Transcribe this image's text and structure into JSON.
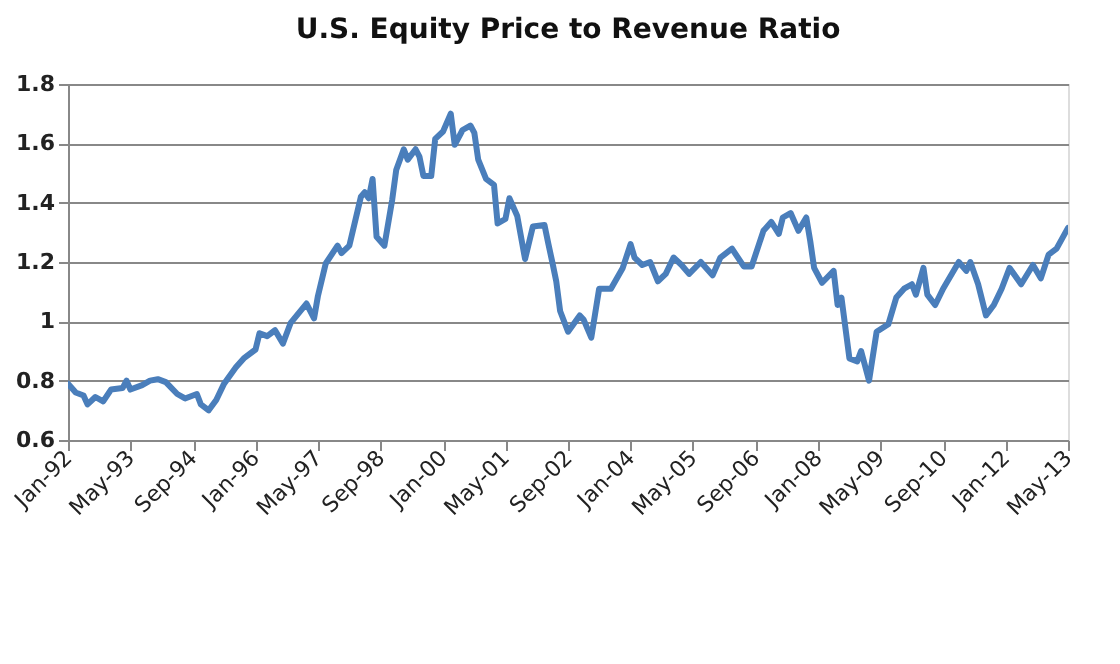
{
  "chart_data": {
    "type": "line",
    "title": "U.S. Equity Price to Revenue Ratio",
    "x": [
      "1992-01",
      "1992-03",
      "1992-05",
      "1992-06",
      "1992-08",
      "1992-10",
      "1992-12",
      "1993-03",
      "1993-04",
      "1993-05",
      "1993-08",
      "1993-10",
      "1993-12",
      "1994-02",
      "1994-05",
      "1994-07",
      "1994-10",
      "1994-11",
      "1995-01",
      "1995-03",
      "1995-05",
      "1995-08",
      "1995-10",
      "1996-01",
      "1996-02",
      "1996-04",
      "1996-06",
      "1996-08",
      "1996-10",
      "1997-02",
      "1997-04",
      "1997-05",
      "1997-07",
      "1997-10",
      "1997-11",
      "1998-01",
      "1998-04",
      "1998-05",
      "1998-06",
      "1998-07",
      "1998-08",
      "1998-10",
      "1998-12",
      "1999-01",
      "1999-03",
      "1999-04",
      "1999-06",
      "1999-07",
      "1999-08",
      "1999-10",
      "1999-11",
      "2000-01",
      "2000-03",
      "2000-04",
      "2000-06",
      "2000-08",
      "2000-09",
      "2000-10",
      "2000-12",
      "2001-02",
      "2001-03",
      "2001-05",
      "2001-06",
      "2001-08",
      "2001-10",
      "2001-12",
      "2002-03",
      "2002-04",
      "2002-05",
      "2002-06",
      "2002-07",
      "2002-09",
      "2002-12",
      "2003-01",
      "2003-03",
      "2003-05",
      "2003-08",
      "2003-11",
      "2004-01",
      "2004-02",
      "2004-04",
      "2004-06",
      "2004-08",
      "2004-10",
      "2004-12",
      "2005-02",
      "2005-04",
      "2005-07",
      "2005-10",
      "2005-12",
      "2006-03",
      "2006-06",
      "2006-08",
      "2006-11",
      "2007-01",
      "2007-03",
      "2007-04",
      "2007-06",
      "2007-08",
      "2007-10",
      "2007-11",
      "2007-12",
      "2008-02",
      "2008-05",
      "2008-06",
      "2008-07",
      "2008-09",
      "2008-11",
      "2008-12",
      "2009-02",
      "2009-04",
      "2009-07",
      "2009-09",
      "2009-11",
      "2010-01",
      "2010-02",
      "2010-04",
      "2010-05",
      "2010-07",
      "2010-09",
      "2011-01",
      "2011-03",
      "2011-04",
      "2011-06",
      "2011-08",
      "2011-10",
      "2011-12",
      "2012-02",
      "2012-05",
      "2012-08",
      "2012-10",
      "2012-12",
      "2013-02",
      "2013-05"
    ],
    "series": [
      {
        "color": "#4a7ebb",
        "values": [
          0.79,
          0.76,
          0.75,
          0.72,
          0.745,
          0.73,
          0.77,
          0.775,
          0.8,
          0.77,
          0.785,
          0.8,
          0.805,
          0.795,
          0.755,
          0.74,
          0.755,
          0.72,
          0.7,
          0.735,
          0.79,
          0.845,
          0.875,
          0.905,
          0.96,
          0.95,
          0.97,
          0.925,
          0.995,
          1.06,
          1.01,
          1.085,
          1.195,
          1.255,
          1.23,
          1.255,
          1.42,
          1.435,
          1.415,
          1.48,
          1.285,
          1.255,
          1.41,
          1.51,
          1.58,
          1.545,
          1.58,
          1.555,
          1.49,
          1.49,
          1.615,
          1.64,
          1.7,
          1.595,
          1.645,
          1.66,
          1.635,
          1.545,
          1.48,
          1.46,
          1.33,
          1.345,
          1.415,
          1.355,
          1.21,
          1.32,
          1.325,
          1.26,
          1.2,
          1.135,
          1.035,
          0.965,
          1.02,
          1.005,
          0.945,
          1.11,
          1.11,
          1.18,
          1.26,
          1.215,
          1.19,
          1.2,
          1.135,
          1.16,
          1.215,
          1.19,
          1.16,
          1.2,
          1.155,
          1.215,
          1.245,
          1.185,
          1.185,
          1.305,
          1.335,
          1.295,
          1.35,
          1.365,
          1.305,
          1.35,
          1.27,
          1.18,
          1.13,
          1.17,
          1.055,
          1.08,
          0.875,
          0.865,
          0.9,
          0.8,
          0.965,
          0.99,
          1.08,
          1.11,
          1.125,
          1.09,
          1.18,
          1.09,
          1.055,
          1.11,
          1.2,
          1.17,
          1.2,
          1.125,
          1.02,
          1.055,
          1.11,
          1.18,
          1.125,
          1.19,
          1.145,
          1.225,
          1.245,
          1.315
        ]
      }
    ],
    "xlim": [
      "1992-01",
      "2013-05"
    ],
    "xticks": [
      {
        "value": "1992-01",
        "label": "Jan-92"
      },
      {
        "value": "1993-05",
        "label": "May-93"
      },
      {
        "value": "1994-09",
        "label": "Sep-94"
      },
      {
        "value": "1996-01",
        "label": "Jan-96"
      },
      {
        "value": "1997-05",
        "label": "May-97"
      },
      {
        "value": "1998-09",
        "label": "Sep-98"
      },
      {
        "value": "2000-01",
        "label": "Jan-00"
      },
      {
        "value": "2001-05",
        "label": "May-01"
      },
      {
        "value": "2002-09",
        "label": "Sep-02"
      },
      {
        "value": "2004-01",
        "label": "Jan-04"
      },
      {
        "value": "2005-05",
        "label": "May-05"
      },
      {
        "value": "2006-09",
        "label": "Sep-06"
      },
      {
        "value": "2008-01",
        "label": "Jan-08"
      },
      {
        "value": "2009-05",
        "label": "May-09"
      },
      {
        "value": "2010-09",
        "label": "Sep-10"
      },
      {
        "value": "2012-01",
        "label": "Jan-12"
      },
      {
        "value": "2013-05",
        "label": "May-13"
      }
    ],
    "ylim": [
      0.6,
      1.8
    ],
    "yticks": [
      0.6,
      0.8,
      {
        "value": 1,
        "label": "1"
      },
      1.2,
      1.4,
      1.6,
      1.8
    ],
    "grid": "y",
    "marker": "none",
    "line_style": "solid"
  }
}
